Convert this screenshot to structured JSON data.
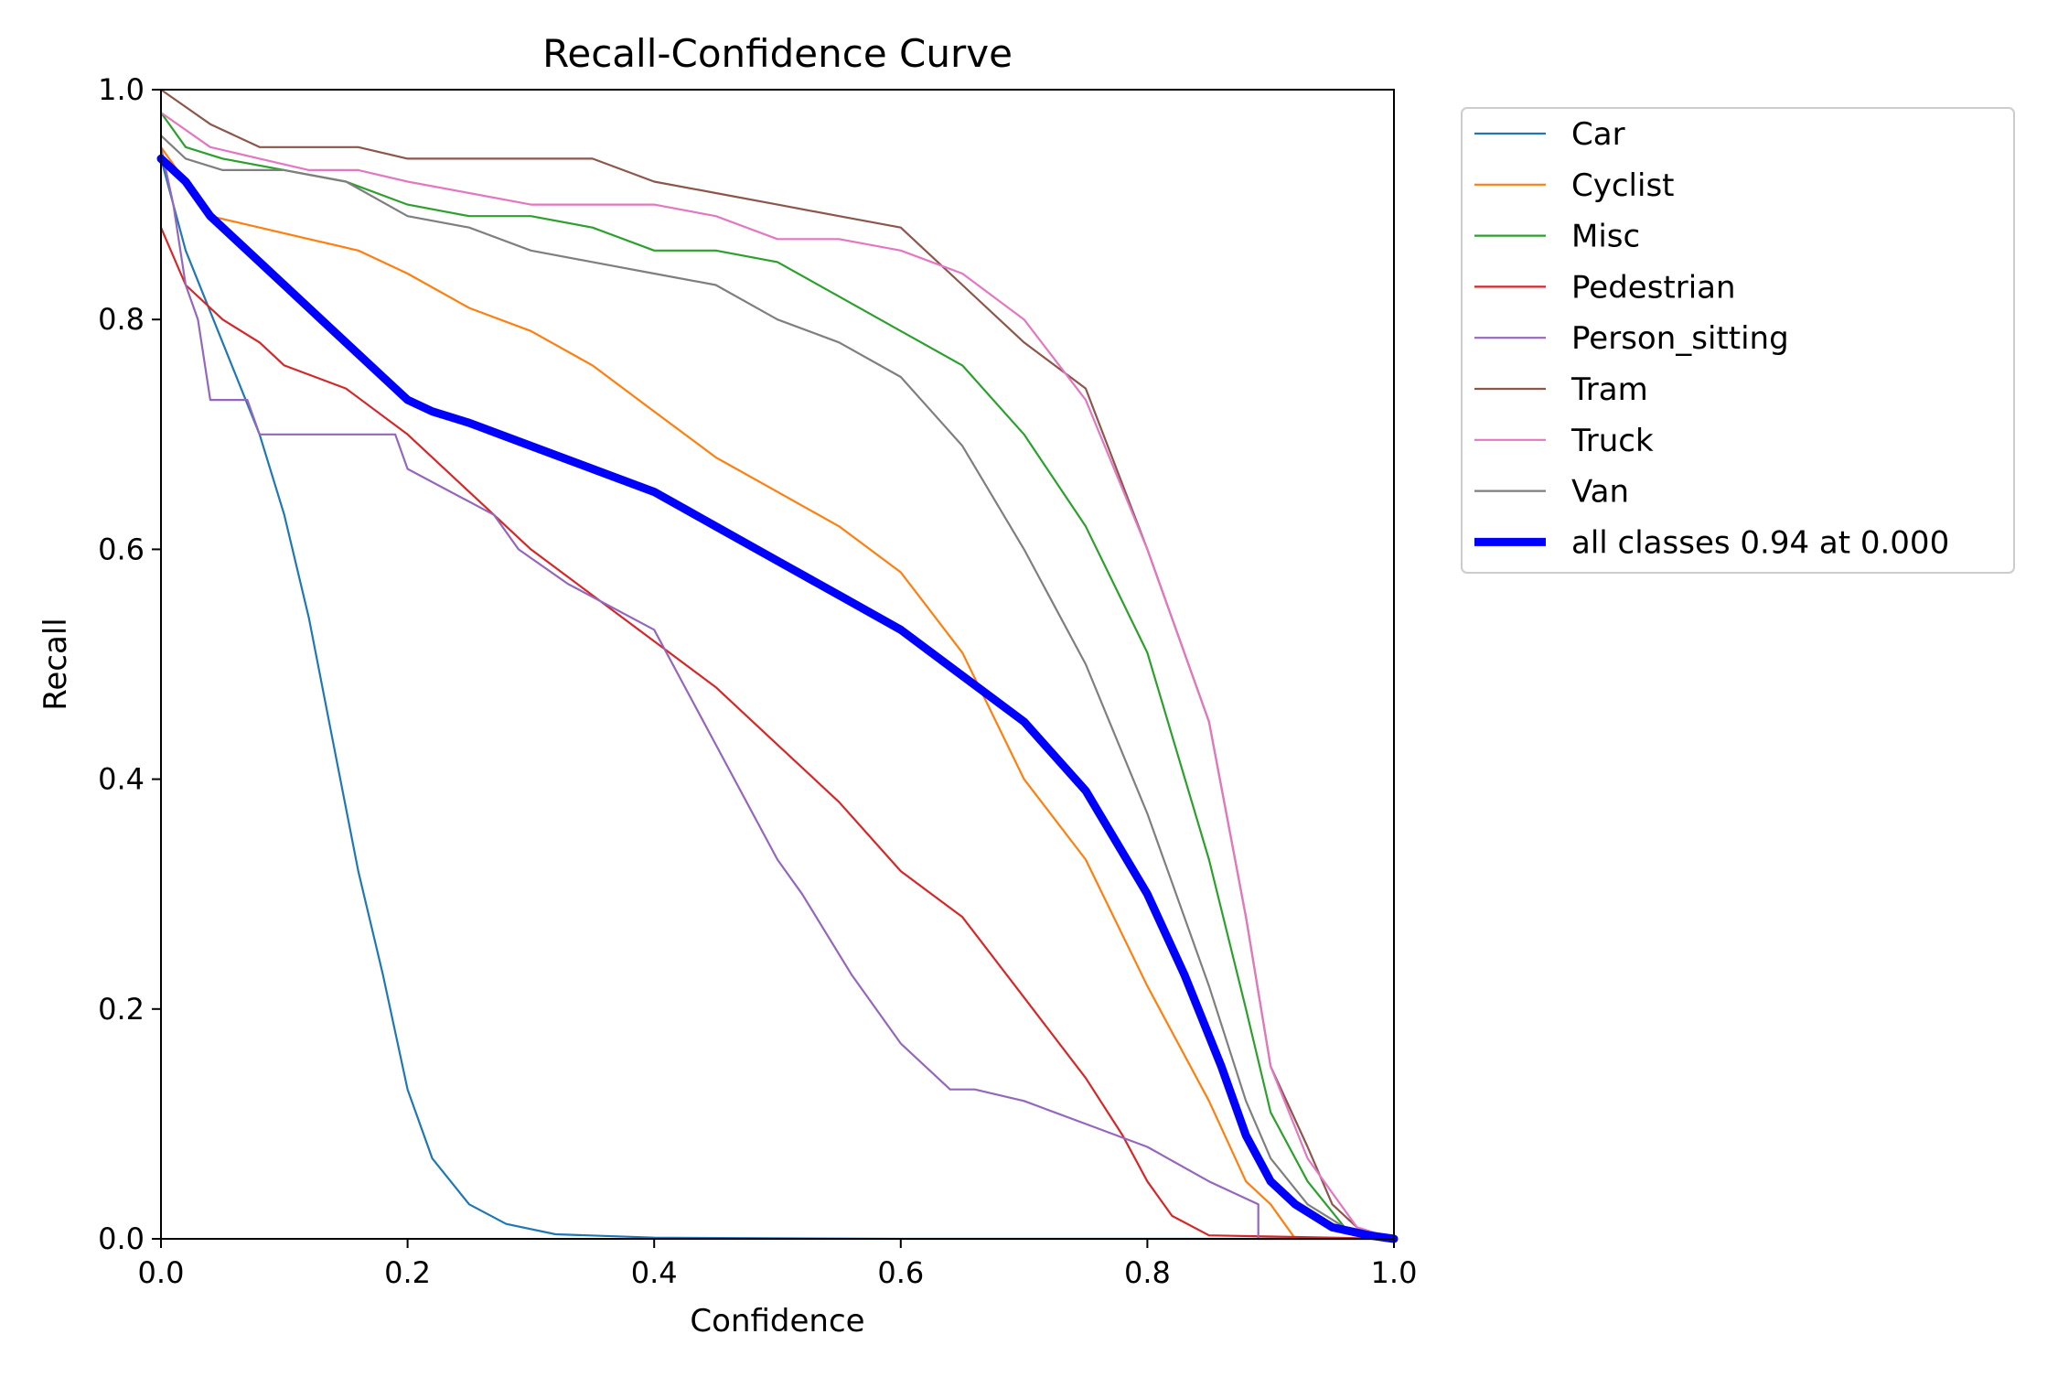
{
  "chart_data": {
    "type": "line",
    "title": "Recall-Confidence Curve",
    "xlabel": "Confidence",
    "ylabel": "Recall",
    "xlim": [
      0.0,
      1.0
    ],
    "ylim": [
      0.0,
      1.0
    ],
    "xticks": [
      "0.0",
      "0.2",
      "0.4",
      "0.6",
      "0.8",
      "1.0"
    ],
    "yticks": [
      "0.0",
      "0.2",
      "0.4",
      "0.6",
      "0.8",
      "1.0"
    ],
    "grid": false,
    "legend_position": "outside-right",
    "series": [
      {
        "name": "Car",
        "color": "#1f77b4",
        "emphasis": false,
        "x": [
          0.0,
          0.02,
          0.05,
          0.08,
          0.1,
          0.12,
          0.14,
          0.16,
          0.18,
          0.2,
          0.22,
          0.25,
          0.28,
          0.32,
          0.4,
          0.6,
          1.0
        ],
        "y": [
          0.94,
          0.86,
          0.78,
          0.7,
          0.63,
          0.54,
          0.43,
          0.32,
          0.23,
          0.13,
          0.07,
          0.03,
          0.013,
          0.004,
          0.001,
          0.0,
          0.0
        ]
      },
      {
        "name": "Cyclist",
        "color": "#ff7f0e",
        "emphasis": false,
        "x": [
          0.0,
          0.04,
          0.08,
          0.12,
          0.16,
          0.2,
          0.25,
          0.3,
          0.35,
          0.4,
          0.45,
          0.5,
          0.55,
          0.6,
          0.65,
          0.7,
          0.75,
          0.8,
          0.85,
          0.88,
          0.9,
          0.92
        ],
        "y": [
          0.95,
          0.89,
          0.88,
          0.87,
          0.86,
          0.84,
          0.81,
          0.79,
          0.76,
          0.72,
          0.68,
          0.65,
          0.62,
          0.58,
          0.51,
          0.4,
          0.33,
          0.22,
          0.12,
          0.05,
          0.03,
          0.0
        ]
      },
      {
        "name": "Misc",
        "color": "#2ca02c",
        "emphasis": false,
        "x": [
          0.0,
          0.02,
          0.05,
          0.1,
          0.15,
          0.2,
          0.25,
          0.3,
          0.35,
          0.4,
          0.45,
          0.5,
          0.55,
          0.6,
          0.65,
          0.7,
          0.75,
          0.8,
          0.85,
          0.88,
          0.9,
          0.93,
          0.96,
          1.0
        ],
        "y": [
          0.98,
          0.95,
          0.94,
          0.93,
          0.92,
          0.9,
          0.89,
          0.89,
          0.88,
          0.86,
          0.86,
          0.85,
          0.82,
          0.79,
          0.76,
          0.7,
          0.62,
          0.51,
          0.33,
          0.2,
          0.11,
          0.05,
          0.01,
          0.0
        ]
      },
      {
        "name": "Pedestrian",
        "color": "#d62728",
        "emphasis": false,
        "x": [
          0.0,
          0.02,
          0.05,
          0.08,
          0.1,
          0.15,
          0.2,
          0.25,
          0.3,
          0.35,
          0.4,
          0.45,
          0.5,
          0.55,
          0.6,
          0.65,
          0.7,
          0.75,
          0.78,
          0.8,
          0.82,
          0.85,
          1.0
        ],
        "y": [
          0.88,
          0.83,
          0.8,
          0.78,
          0.76,
          0.74,
          0.7,
          0.65,
          0.6,
          0.56,
          0.52,
          0.48,
          0.43,
          0.38,
          0.32,
          0.28,
          0.21,
          0.14,
          0.09,
          0.05,
          0.02,
          0.003,
          0.0
        ]
      },
      {
        "name": "Person_sitting",
        "color": "#9467bd",
        "emphasis": false,
        "x": [
          0.0,
          0.01,
          0.02,
          0.03,
          0.04,
          0.07,
          0.08,
          0.15,
          0.19,
          0.2,
          0.27,
          0.29,
          0.33,
          0.4,
          0.45,
          0.5,
          0.52,
          0.56,
          0.6,
          0.64,
          0.66,
          0.7,
          0.75,
          0.8,
          0.85,
          0.89,
          0.89,
          1.0
        ],
        "y": [
          0.95,
          0.9,
          0.83,
          0.8,
          0.73,
          0.73,
          0.7,
          0.7,
          0.7,
          0.67,
          0.63,
          0.6,
          0.57,
          0.53,
          0.43,
          0.33,
          0.3,
          0.23,
          0.17,
          0.13,
          0.13,
          0.12,
          0.1,
          0.08,
          0.05,
          0.03,
          0.0,
          0.0
        ]
      },
      {
        "name": "Tram",
        "color": "#8c564b",
        "emphasis": false,
        "x": [
          0.0,
          0.04,
          0.08,
          0.12,
          0.16,
          0.2,
          0.25,
          0.3,
          0.35,
          0.4,
          0.45,
          0.5,
          0.55,
          0.6,
          0.65,
          0.7,
          0.75,
          0.8,
          0.85,
          0.88,
          0.9,
          0.93,
          0.95,
          0.97,
          1.0
        ],
        "y": [
          1.0,
          0.97,
          0.95,
          0.95,
          0.95,
          0.94,
          0.94,
          0.94,
          0.94,
          0.92,
          0.91,
          0.9,
          0.89,
          0.88,
          0.83,
          0.78,
          0.74,
          0.6,
          0.45,
          0.28,
          0.15,
          0.08,
          0.03,
          0.01,
          0.0
        ]
      },
      {
        "name": "Truck",
        "color": "#e377c2",
        "emphasis": false,
        "x": [
          0.0,
          0.04,
          0.08,
          0.12,
          0.16,
          0.2,
          0.25,
          0.3,
          0.35,
          0.4,
          0.45,
          0.5,
          0.55,
          0.6,
          0.65,
          0.7,
          0.75,
          0.8,
          0.85,
          0.88,
          0.9,
          0.93,
          0.95,
          0.97,
          1.0
        ],
        "y": [
          0.98,
          0.95,
          0.94,
          0.93,
          0.93,
          0.92,
          0.91,
          0.9,
          0.9,
          0.9,
          0.89,
          0.87,
          0.87,
          0.86,
          0.84,
          0.8,
          0.73,
          0.6,
          0.45,
          0.28,
          0.15,
          0.07,
          0.04,
          0.01,
          0.0
        ]
      },
      {
        "name": "Van",
        "color": "#7f7f7f",
        "emphasis": false,
        "x": [
          0.0,
          0.02,
          0.05,
          0.1,
          0.15,
          0.2,
          0.25,
          0.3,
          0.35,
          0.4,
          0.45,
          0.5,
          0.55,
          0.6,
          0.65,
          0.7,
          0.75,
          0.8,
          0.85,
          0.88,
          0.9,
          0.93,
          0.96,
          1.0
        ],
        "y": [
          0.96,
          0.94,
          0.93,
          0.93,
          0.92,
          0.89,
          0.88,
          0.86,
          0.85,
          0.84,
          0.83,
          0.8,
          0.78,
          0.75,
          0.69,
          0.6,
          0.5,
          0.37,
          0.22,
          0.12,
          0.07,
          0.03,
          0.01,
          0.0
        ]
      },
      {
        "name": "all classes 0.94 at 0.000",
        "color": "#0000ff",
        "emphasis": true,
        "x": [
          0.0,
          0.02,
          0.04,
          0.06,
          0.1,
          0.14,
          0.18,
          0.2,
          0.22,
          0.25,
          0.3,
          0.35,
          0.4,
          0.45,
          0.5,
          0.55,
          0.6,
          0.65,
          0.7,
          0.75,
          0.8,
          0.83,
          0.86,
          0.88,
          0.9,
          0.92,
          0.95,
          0.98,
          1.0
        ],
        "y": [
          0.94,
          0.92,
          0.89,
          0.87,
          0.83,
          0.79,
          0.75,
          0.73,
          0.72,
          0.71,
          0.69,
          0.67,
          0.65,
          0.62,
          0.59,
          0.56,
          0.53,
          0.49,
          0.45,
          0.39,
          0.3,
          0.23,
          0.15,
          0.09,
          0.05,
          0.03,
          0.01,
          0.003,
          0.0
        ]
      }
    ]
  }
}
